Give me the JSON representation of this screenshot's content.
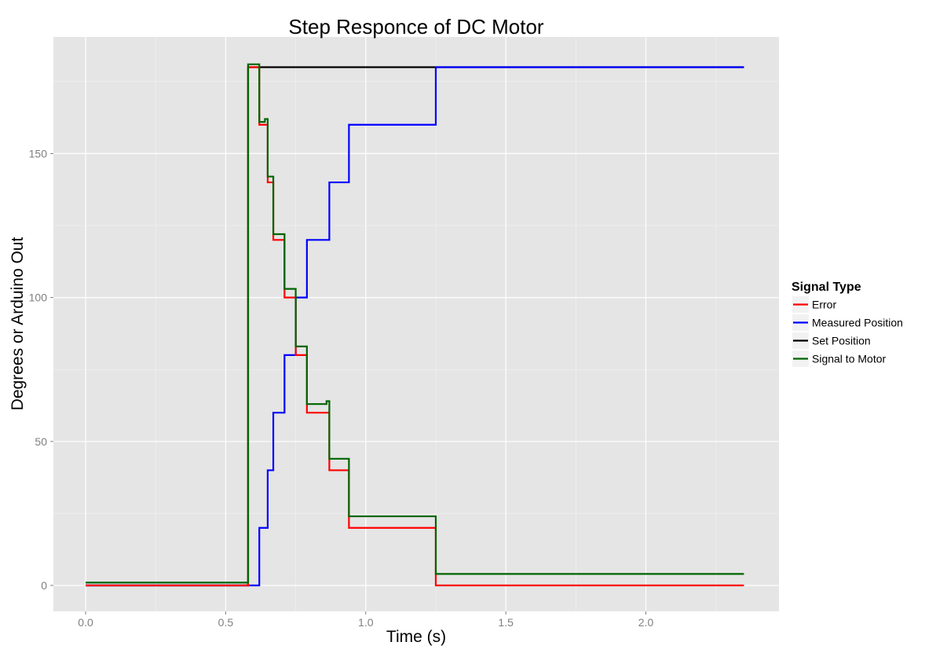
{
  "chart_data": {
    "type": "line",
    "subtype": "step",
    "title": "Step Responce of DC Motor",
    "xlabel": "Time (s)",
    "ylabel": "Degrees or Arduino Out",
    "xlim": [
      -0.115,
      2.475
    ],
    "ylim": [
      -9,
      190.5
    ],
    "x_ticks": [
      0.0,
      0.5,
      1.0,
      1.5,
      2.0
    ],
    "x_tick_labels": [
      "0.0",
      "0.5",
      "1.0",
      "1.5",
      "2.0"
    ],
    "y_ticks": [
      0,
      50,
      100,
      150
    ],
    "y_tick_labels": [
      "0",
      "50",
      "100",
      "150"
    ],
    "grid": true,
    "legend": {
      "title": "Signal Type",
      "position": "right",
      "entries": [
        "Error",
        "Measured Position",
        "Set Position",
        "Signal to Motor"
      ]
    },
    "series": [
      {
        "name": "Set Position",
        "color": "#000000",
        "x": [
          0.0,
          0.58,
          2.35
        ],
        "values": [
          0,
          180,
          180
        ]
      },
      {
        "name": "Measured Position",
        "color": "#0000ff",
        "x": [
          0.0,
          0.62,
          0.65,
          0.67,
          0.71,
          0.75,
          0.79,
          0.87,
          0.94,
          1.25,
          2.35
        ],
        "values": [
          0,
          20,
          40,
          60,
          80,
          100,
          120,
          140,
          160,
          180,
          180
        ]
      },
      {
        "name": "Error",
        "color": "#ff0000",
        "x": [
          0.0,
          0.58,
          0.62,
          0.65,
          0.67,
          0.71,
          0.75,
          0.79,
          0.87,
          0.94,
          1.25,
          2.35
        ],
        "values": [
          0,
          180,
          160,
          140,
          120,
          100,
          80,
          60,
          40,
          20,
          0,
          0
        ]
      },
      {
        "name": "Signal to Motor",
        "color": "#006400",
        "x": [
          0.0,
          0.58,
          0.62,
          0.64,
          0.65,
          0.67,
          0.71,
          0.75,
          0.79,
          0.86,
          0.87,
          0.94,
          1.25,
          2.35
        ],
        "values": [
          1,
          181,
          161,
          162,
          142,
          122,
          103,
          83,
          63,
          64,
          44,
          24,
          4,
          4
        ]
      }
    ]
  }
}
